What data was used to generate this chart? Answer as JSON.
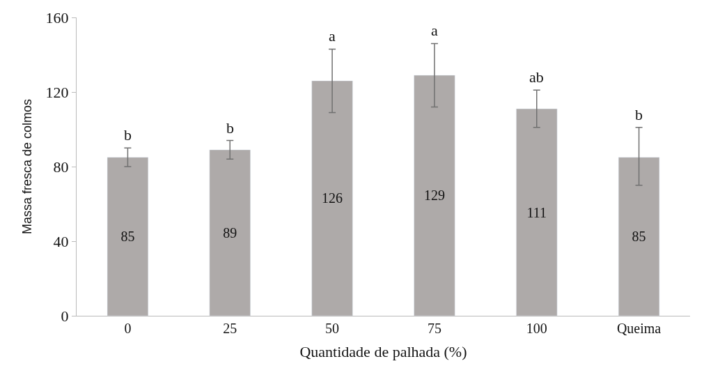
{
  "chart_data": {
    "type": "bar",
    "xlabel": "Quantidade de palhada (%)",
    "ylabel": "Massa fresca de colmos",
    "categories": [
      "0",
      "25",
      "50",
      "75",
      "100",
      "Queima"
    ],
    "values": [
      85,
      89,
      126,
      129,
      111,
      85
    ],
    "color": "#aeaaa9",
    "errors": [
      [
        80,
        90
      ],
      [
        84,
        94
      ],
      [
        109,
        143
      ],
      [
        112,
        146
      ],
      [
        101,
        121
      ],
      [
        70,
        101
      ]
    ],
    "data_labels": true,
    "ylim": [
      0,
      160
    ],
    "yticks": [
      0,
      40,
      80,
      120,
      160
    ],
    "legend": false,
    "annotations": [
      {
        "text": "b",
        "x": "0",
        "y": 90
      },
      {
        "text": "b",
        "x": "25",
        "y": 94
      },
      {
        "text": "a",
        "x": "50",
        "y": 143
      },
      {
        "text": "a",
        "x": "75",
        "y": 146
      },
      {
        "text": "ab",
        "x": "100",
        "y": 121
      },
      {
        "text": "b",
        "x": "Queima",
        "y": 101
      }
    ]
  }
}
